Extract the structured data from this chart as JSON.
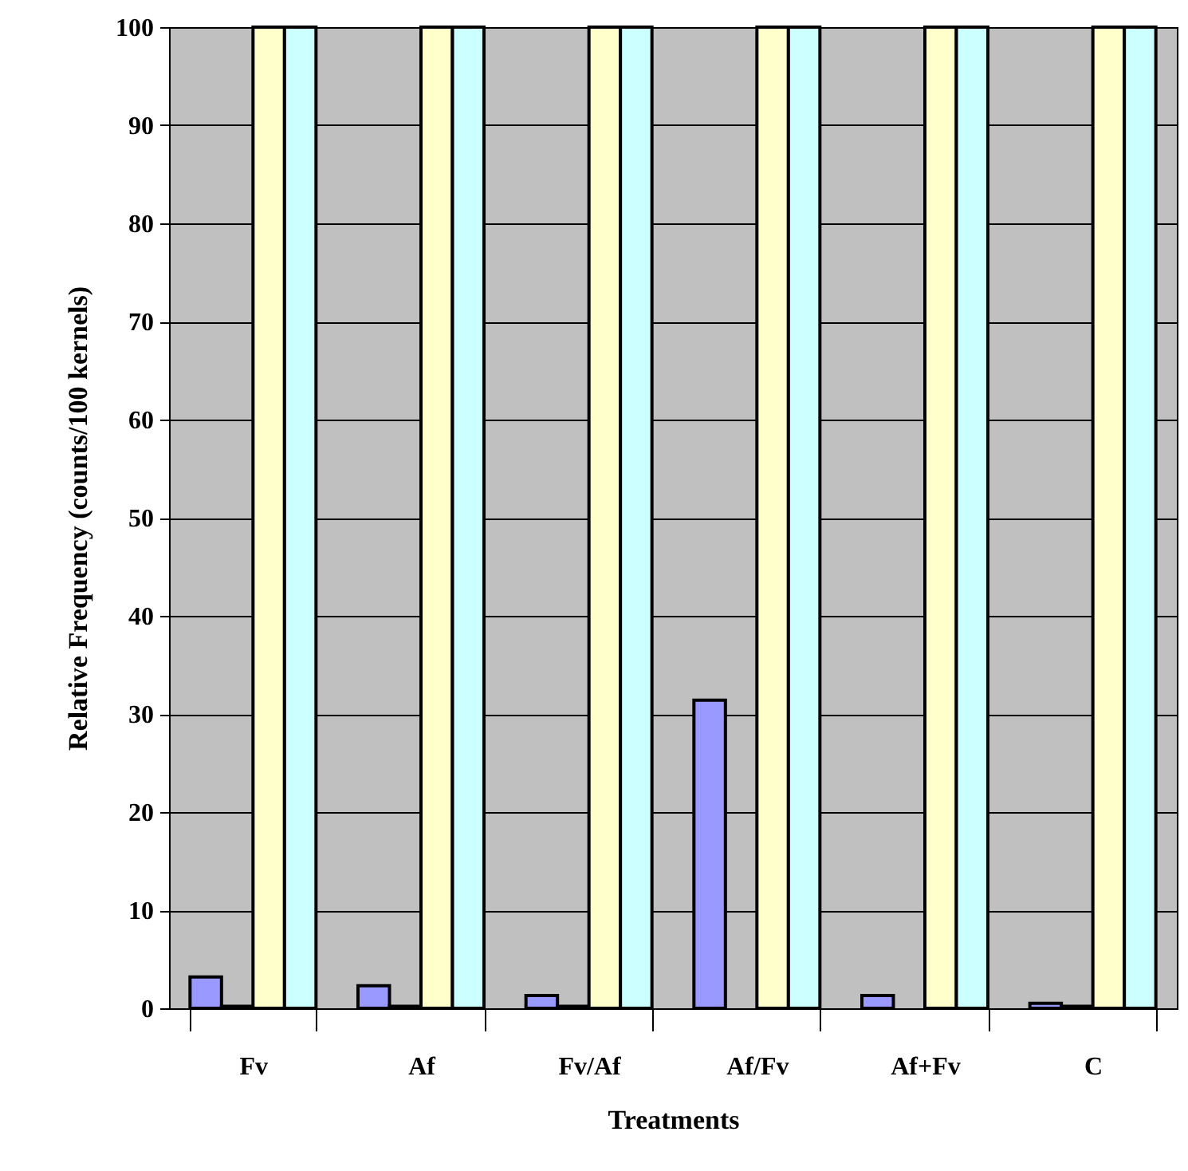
{
  "chart_data": {
    "type": "bar",
    "xlabel": "Treatments",
    "ylabel": "Relative Frequency (counts/100   kernels)",
    "categories": [
      "Fv",
      "Af",
      "Fv/Af",
      "Af/Fv",
      "Af+Fv",
      "C"
    ],
    "series": [
      {
        "color": "#9999ff",
        "values": [
          3.2,
          2.3,
          1.3,
          31.4,
          1.3,
          0.5
        ]
      },
      {
        "color": "#993366",
        "values": [
          0.2,
          0.2,
          0.2,
          null,
          null,
          0.2
        ]
      },
      {
        "color": "#ffffcc",
        "values": [
          100,
          100,
          100,
          100,
          100,
          100
        ]
      },
      {
        "color": "#ccffff",
        "values": [
          100,
          100,
          100,
          100,
          100,
          100
        ]
      }
    ],
    "ylim": [
      0,
      100
    ],
    "yticks": [
      0,
      10,
      20,
      30,
      40,
      50,
      60,
      70,
      80,
      90,
      100
    ],
    "grid": "y"
  }
}
